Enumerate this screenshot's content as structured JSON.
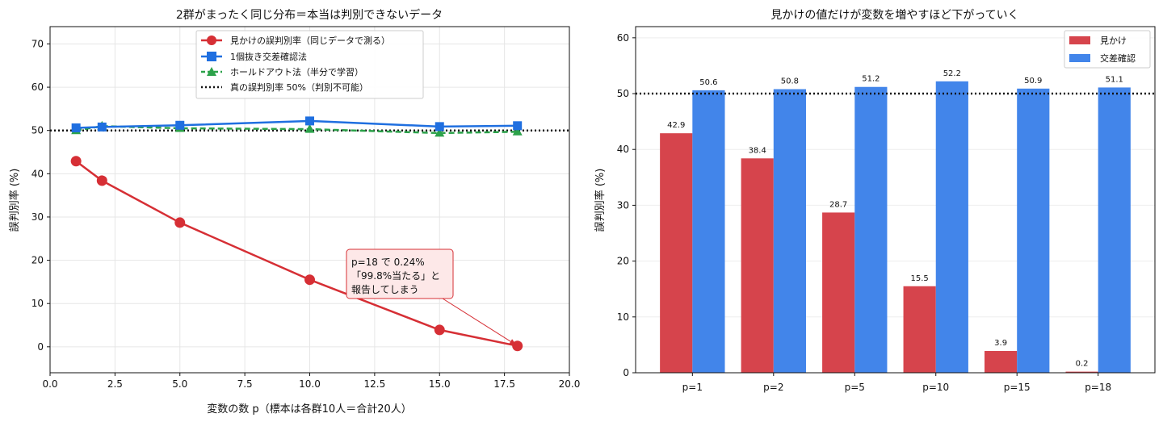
{
  "colors": {
    "apparent": "#d62f35",
    "cv": "#1f6fe0",
    "holdout": "#2ca24a",
    "true_line": "#111111",
    "bar_apparent": "#d6444c",
    "bar_cv": "#4285ea",
    "annotation_bg": "#fde8e8",
    "annotation_border": "#d62f35"
  },
  "chart_data": [
    {
      "type": "line",
      "title": "2群がまったく同じ分布＝本当は判別できないデータ",
      "xlabel": "変数の数 p（標本は各群10人＝合計20人）",
      "ylabel": "誤判別率 (%)",
      "xlim": [
        0,
        20
      ],
      "ylim": [
        -6,
        74
      ],
      "xticks": [
        0,
        2.5,
        5,
        7.5,
        10,
        12.5,
        15,
        17.5,
        20
      ],
      "xtick_labels": [
        "0.0",
        "2.5",
        "5.0",
        "7.5",
        "10.0",
        "12.5",
        "15.0",
        "17.5",
        "20.0"
      ],
      "yticks": [
        0,
        10,
        20,
        30,
        40,
        50,
        60,
        70
      ],
      "ytick_labels": [
        "0",
        "10",
        "20",
        "30",
        "40",
        "50",
        "60",
        "70"
      ],
      "grid": true,
      "legend_position": "top-center",
      "series": [
        {
          "name": "見かけの誤判別率（同じデータで測る）",
          "x": [
            1,
            2,
            5,
            10,
            15,
            18
          ],
          "y": [
            42.9,
            38.4,
            28.7,
            15.5,
            3.9,
            0.2
          ],
          "marker": "circle",
          "style": "solid"
        },
        {
          "name": "1個抜き交差確認法",
          "x": [
            1,
            2,
            5,
            10,
            15,
            18
          ],
          "y": [
            50.6,
            50.8,
            51.2,
            52.2,
            50.9,
            51.1
          ],
          "marker": "square",
          "style": "solid"
        },
        {
          "name": "ホールドアウト法（半分で学習）",
          "x": [
            1,
            2,
            5,
            10,
            15,
            18
          ],
          "y": [
            50.0,
            51.0,
            50.5,
            50.3,
            49.4,
            49.7
          ],
          "marker": "triangle",
          "style": "dashed"
        }
      ],
      "reference_line": {
        "name": "真の誤判別率 50%（判別不可能）",
        "y": 50
      },
      "annotation": {
        "lines": [
          "p=18 で 0.24%",
          "「99.8%当たる」と",
          "報告してしまう"
        ],
        "points_to": {
          "x": 18,
          "y": 0.24
        }
      }
    },
    {
      "type": "bar",
      "title": "見かけの値だけが変数を増やすほど下がっていく",
      "xlabel": "",
      "ylabel": "誤判別率 (%)",
      "ylim": [
        0,
        62
      ],
      "yticks": [
        0,
        10,
        20,
        30,
        40,
        50,
        60
      ],
      "ytick_labels": [
        "0",
        "10",
        "20",
        "30",
        "40",
        "50",
        "60"
      ],
      "categories": [
        "p=1",
        "p=2",
        "p=5",
        "p=10",
        "p=15",
        "p=18"
      ],
      "grid": true,
      "legend_position": "top-right",
      "reference_line": {
        "y": 50
      },
      "series": [
        {
          "name": "見かけ",
          "values": [
            42.9,
            38.4,
            28.7,
            15.5,
            3.9,
            0.2
          ],
          "value_labels": [
            "42.9",
            "38.4",
            "28.7",
            "15.5",
            "3.9",
            "0.2"
          ]
        },
        {
          "name": "交差確認",
          "values": [
            50.6,
            50.8,
            51.2,
            52.2,
            50.9,
            51.1
          ],
          "value_labels": [
            "50.6",
            "50.8",
            "51.2",
            "52.2",
            "50.9",
            "51.1"
          ]
        }
      ]
    }
  ]
}
